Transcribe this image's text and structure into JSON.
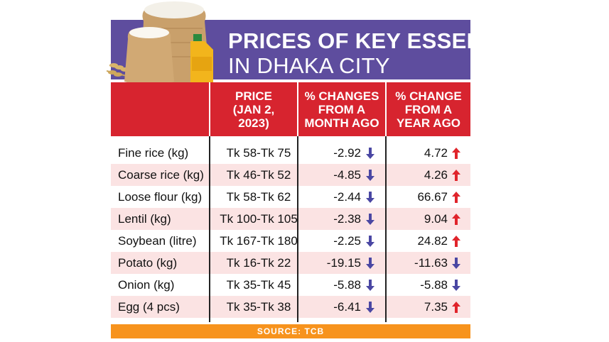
{
  "title_line1": "PRICES OF KEY ESSENTIALS",
  "title_line2": "IN DHAKA CITY",
  "source": "SOURCE: TCB",
  "colors": {
    "title_band": "#5e4d9e",
    "header_band": "#d7242f",
    "row_shade": "#fbe3e3",
    "footer": "#f7931d",
    "arrow_up": "#e0242b",
    "arrow_down": "#4a47a3"
  },
  "chart_data": {
    "type": "table",
    "columns": [
      "",
      "PRICE\n(JAN 2,\n2023)",
      "% CHANGES\nFROM A\nMONTH AGO",
      "% CHANGE\nFROM A\nYEAR AGO"
    ],
    "rows": [
      {
        "item": "Fine rice (kg)",
        "price": "Tk 58-Tk 75",
        "month_change": "-2.92",
        "month_dir": "down",
        "year_change": "4.72",
        "year_dir": "up"
      },
      {
        "item": "Coarse rice (kg)",
        "price": "Tk 46-Tk 52",
        "month_change": "-4.85",
        "month_dir": "down",
        "year_change": "4.26",
        "year_dir": "up"
      },
      {
        "item": "Loose flour (kg)",
        "price": "Tk 58-Tk 62",
        "month_change": "-2.44",
        "month_dir": "down",
        "year_change": "66.67",
        "year_dir": "up"
      },
      {
        "item": "Lentil (kg)",
        "price": "Tk 100-Tk 105",
        "month_change": "-2.38",
        "month_dir": "down",
        "year_change": "9.04",
        "year_dir": "up"
      },
      {
        "item": "Soybean (litre)",
        "price": "Tk 167-Tk 180",
        "month_change": "-2.25",
        "month_dir": "down",
        "year_change": "24.82",
        "year_dir": "up"
      },
      {
        "item": "Potato (kg)",
        "price": "Tk 16-Tk 22",
        "month_change": "-19.15",
        "month_dir": "down",
        "year_change": "-11.63",
        "year_dir": "down"
      },
      {
        "item": "Onion (kg)",
        "price": "Tk 35-Tk 45",
        "month_change": "-5.88",
        "month_dir": "down",
        "year_change": "-5.88",
        "year_dir": "down"
      },
      {
        "item": "Egg (4 pcs)",
        "price": "Tk 35-Tk 38",
        "month_change": "-6.41",
        "month_dir": "down",
        "year_change": "7.35",
        "year_dir": "up"
      }
    ]
  }
}
